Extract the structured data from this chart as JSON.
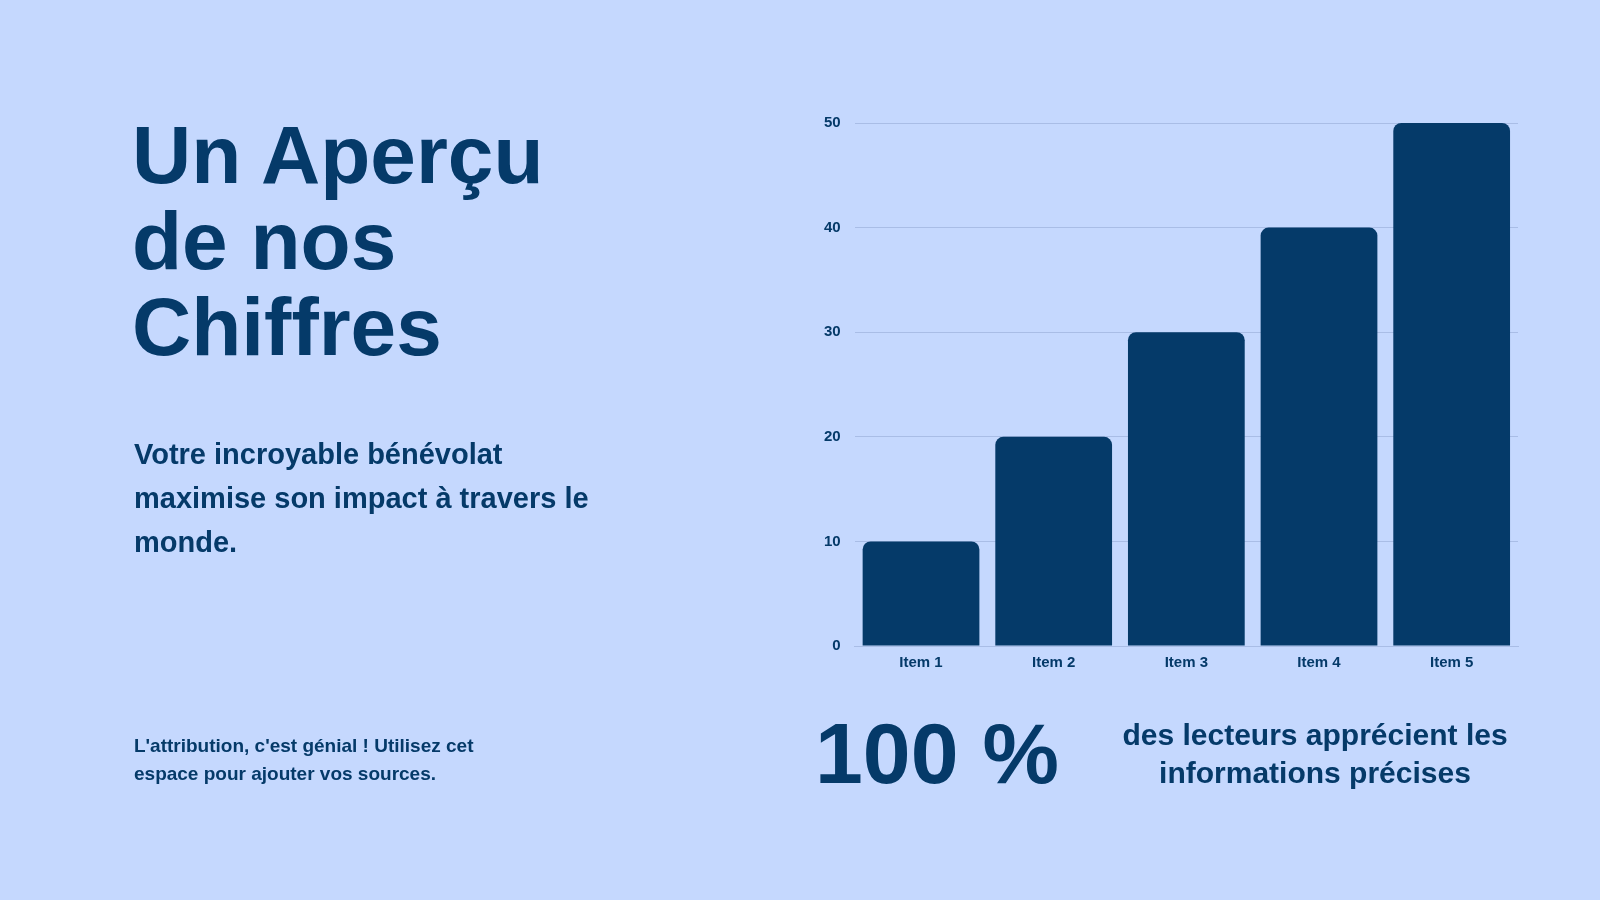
{
  "chart_data": {
    "type": "bar",
    "title": "Un Aperçu de nos Chiffres",
    "subtitle": "Votre incroyable bénévolat maximise son impact à travers le monde.",
    "categories": [
      "Item 1",
      "Item 2",
      "Item 3",
      "Item 4",
      "Item 5"
    ],
    "values": [
      10,
      20,
      30,
      40,
      50
    ],
    "color": "#053a69",
    "ylim": [
      0,
      50
    ],
    "yticks": [
      0,
      10,
      20,
      30,
      40,
      50
    ],
    "grid": "y",
    "annotations": [
      "100 %",
      "des lecteurs apprécient les informations précises",
      "L'attribution, c'est génial ! Utilisez cet espace pour ajouter vos sources."
    ]
  }
}
